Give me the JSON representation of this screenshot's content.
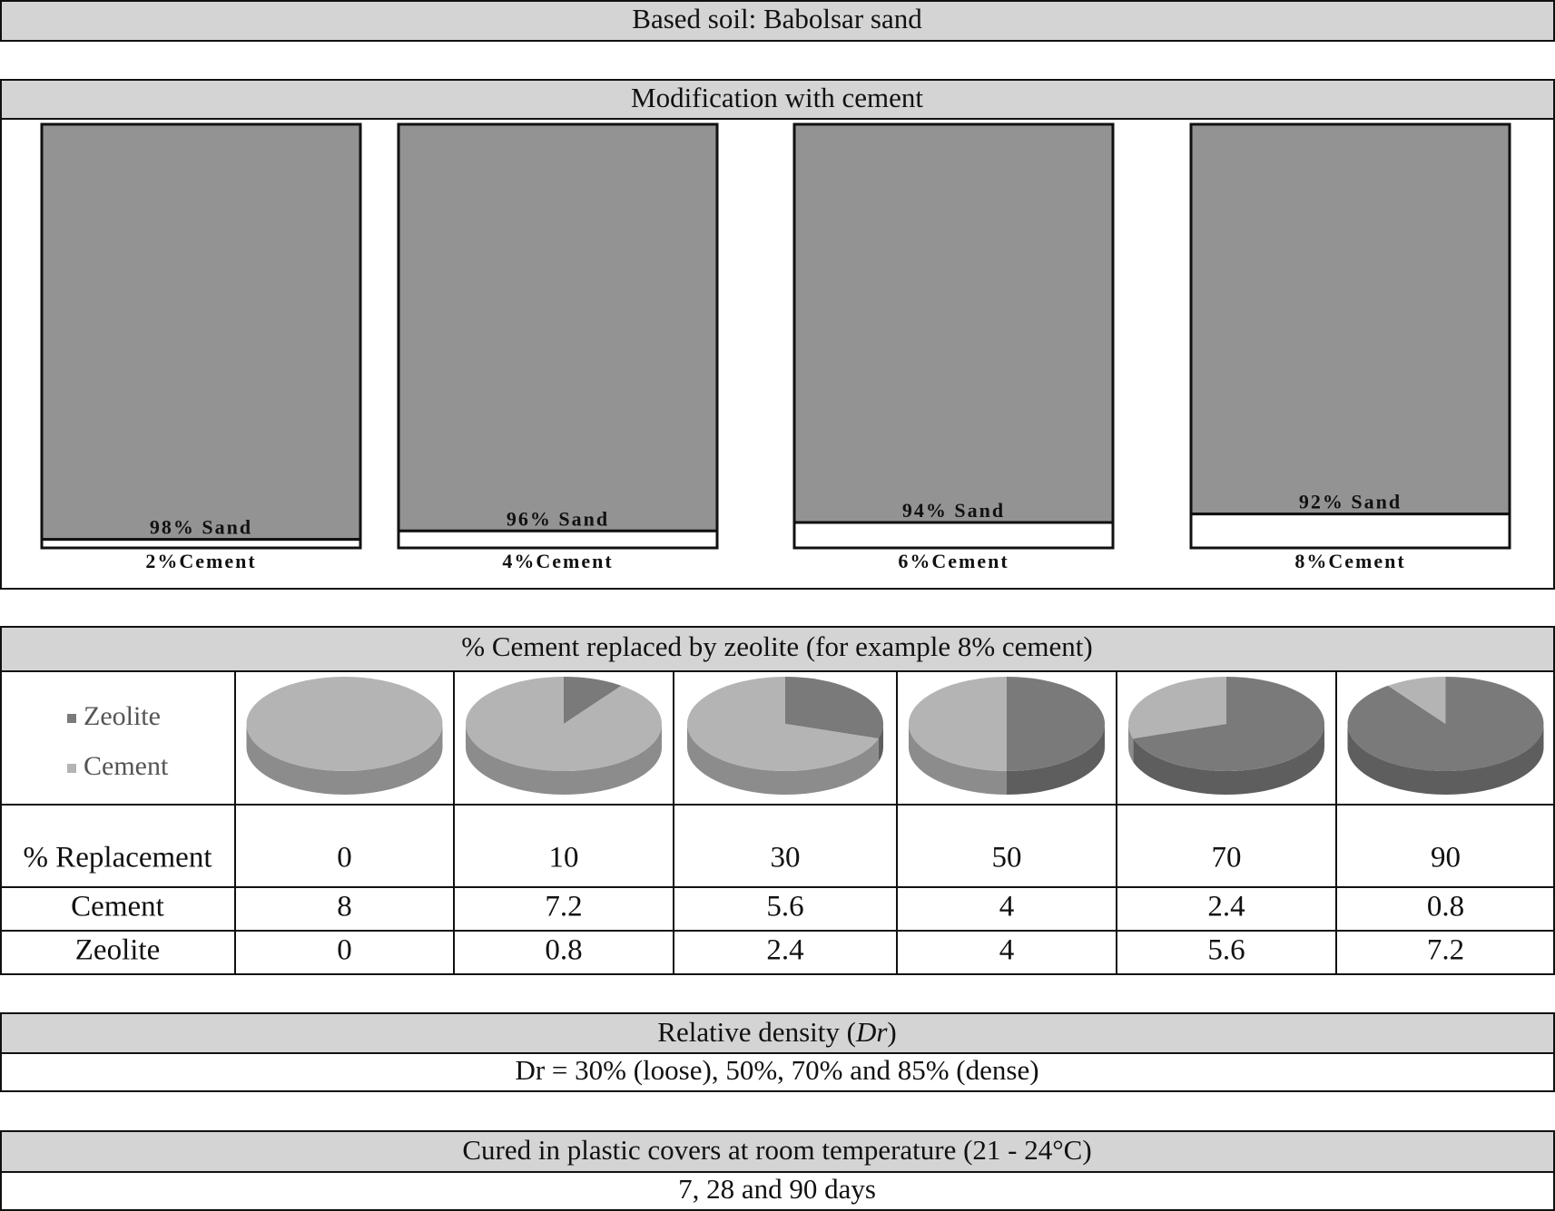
{
  "header": {
    "title": "Based soil: Babolsar sand"
  },
  "modification": {
    "title": "Modification with cement",
    "mixes": [
      {
        "sand": 98,
        "sand_label": "98% Sand",
        "cement": 2,
        "cement_label": "2%Cement"
      },
      {
        "sand": 96,
        "sand_label": "96% Sand",
        "cement": 4,
        "cement_label": "4%Cement"
      },
      {
        "sand": 94,
        "sand_label": "94% Sand",
        "cement": 6,
        "cement_label": "6%Cement"
      },
      {
        "sand": 92,
        "sand_label": "92% Sand",
        "cement": 8,
        "cement_label": "8%Cement"
      }
    ]
  },
  "replacement": {
    "title": "% Cement replaced by zeolite (for example 8% cement)",
    "legend": [
      "Zeolite",
      "Cement"
    ],
    "row_labels": [
      "% Replacement",
      "Cement",
      "Zeolite"
    ],
    "replacement": [
      0,
      10,
      30,
      50,
      70,
      90
    ],
    "cement": [
      8,
      7.2,
      5.6,
      4,
      2.4,
      0.8
    ],
    "zeolite": [
      0,
      0.8,
      2.4,
      4,
      5.6,
      7.2
    ]
  },
  "density": {
    "title": [
      "Relative density (",
      "Dr",
      ")"
    ],
    "text": "Dr = 30% (loose), 50%, 70% and 85% (dense)"
  },
  "curing": {
    "title": "Cured in plastic covers at room temperature (21 - 24°C)",
    "text": "7, 28 and 90 days"
  }
}
